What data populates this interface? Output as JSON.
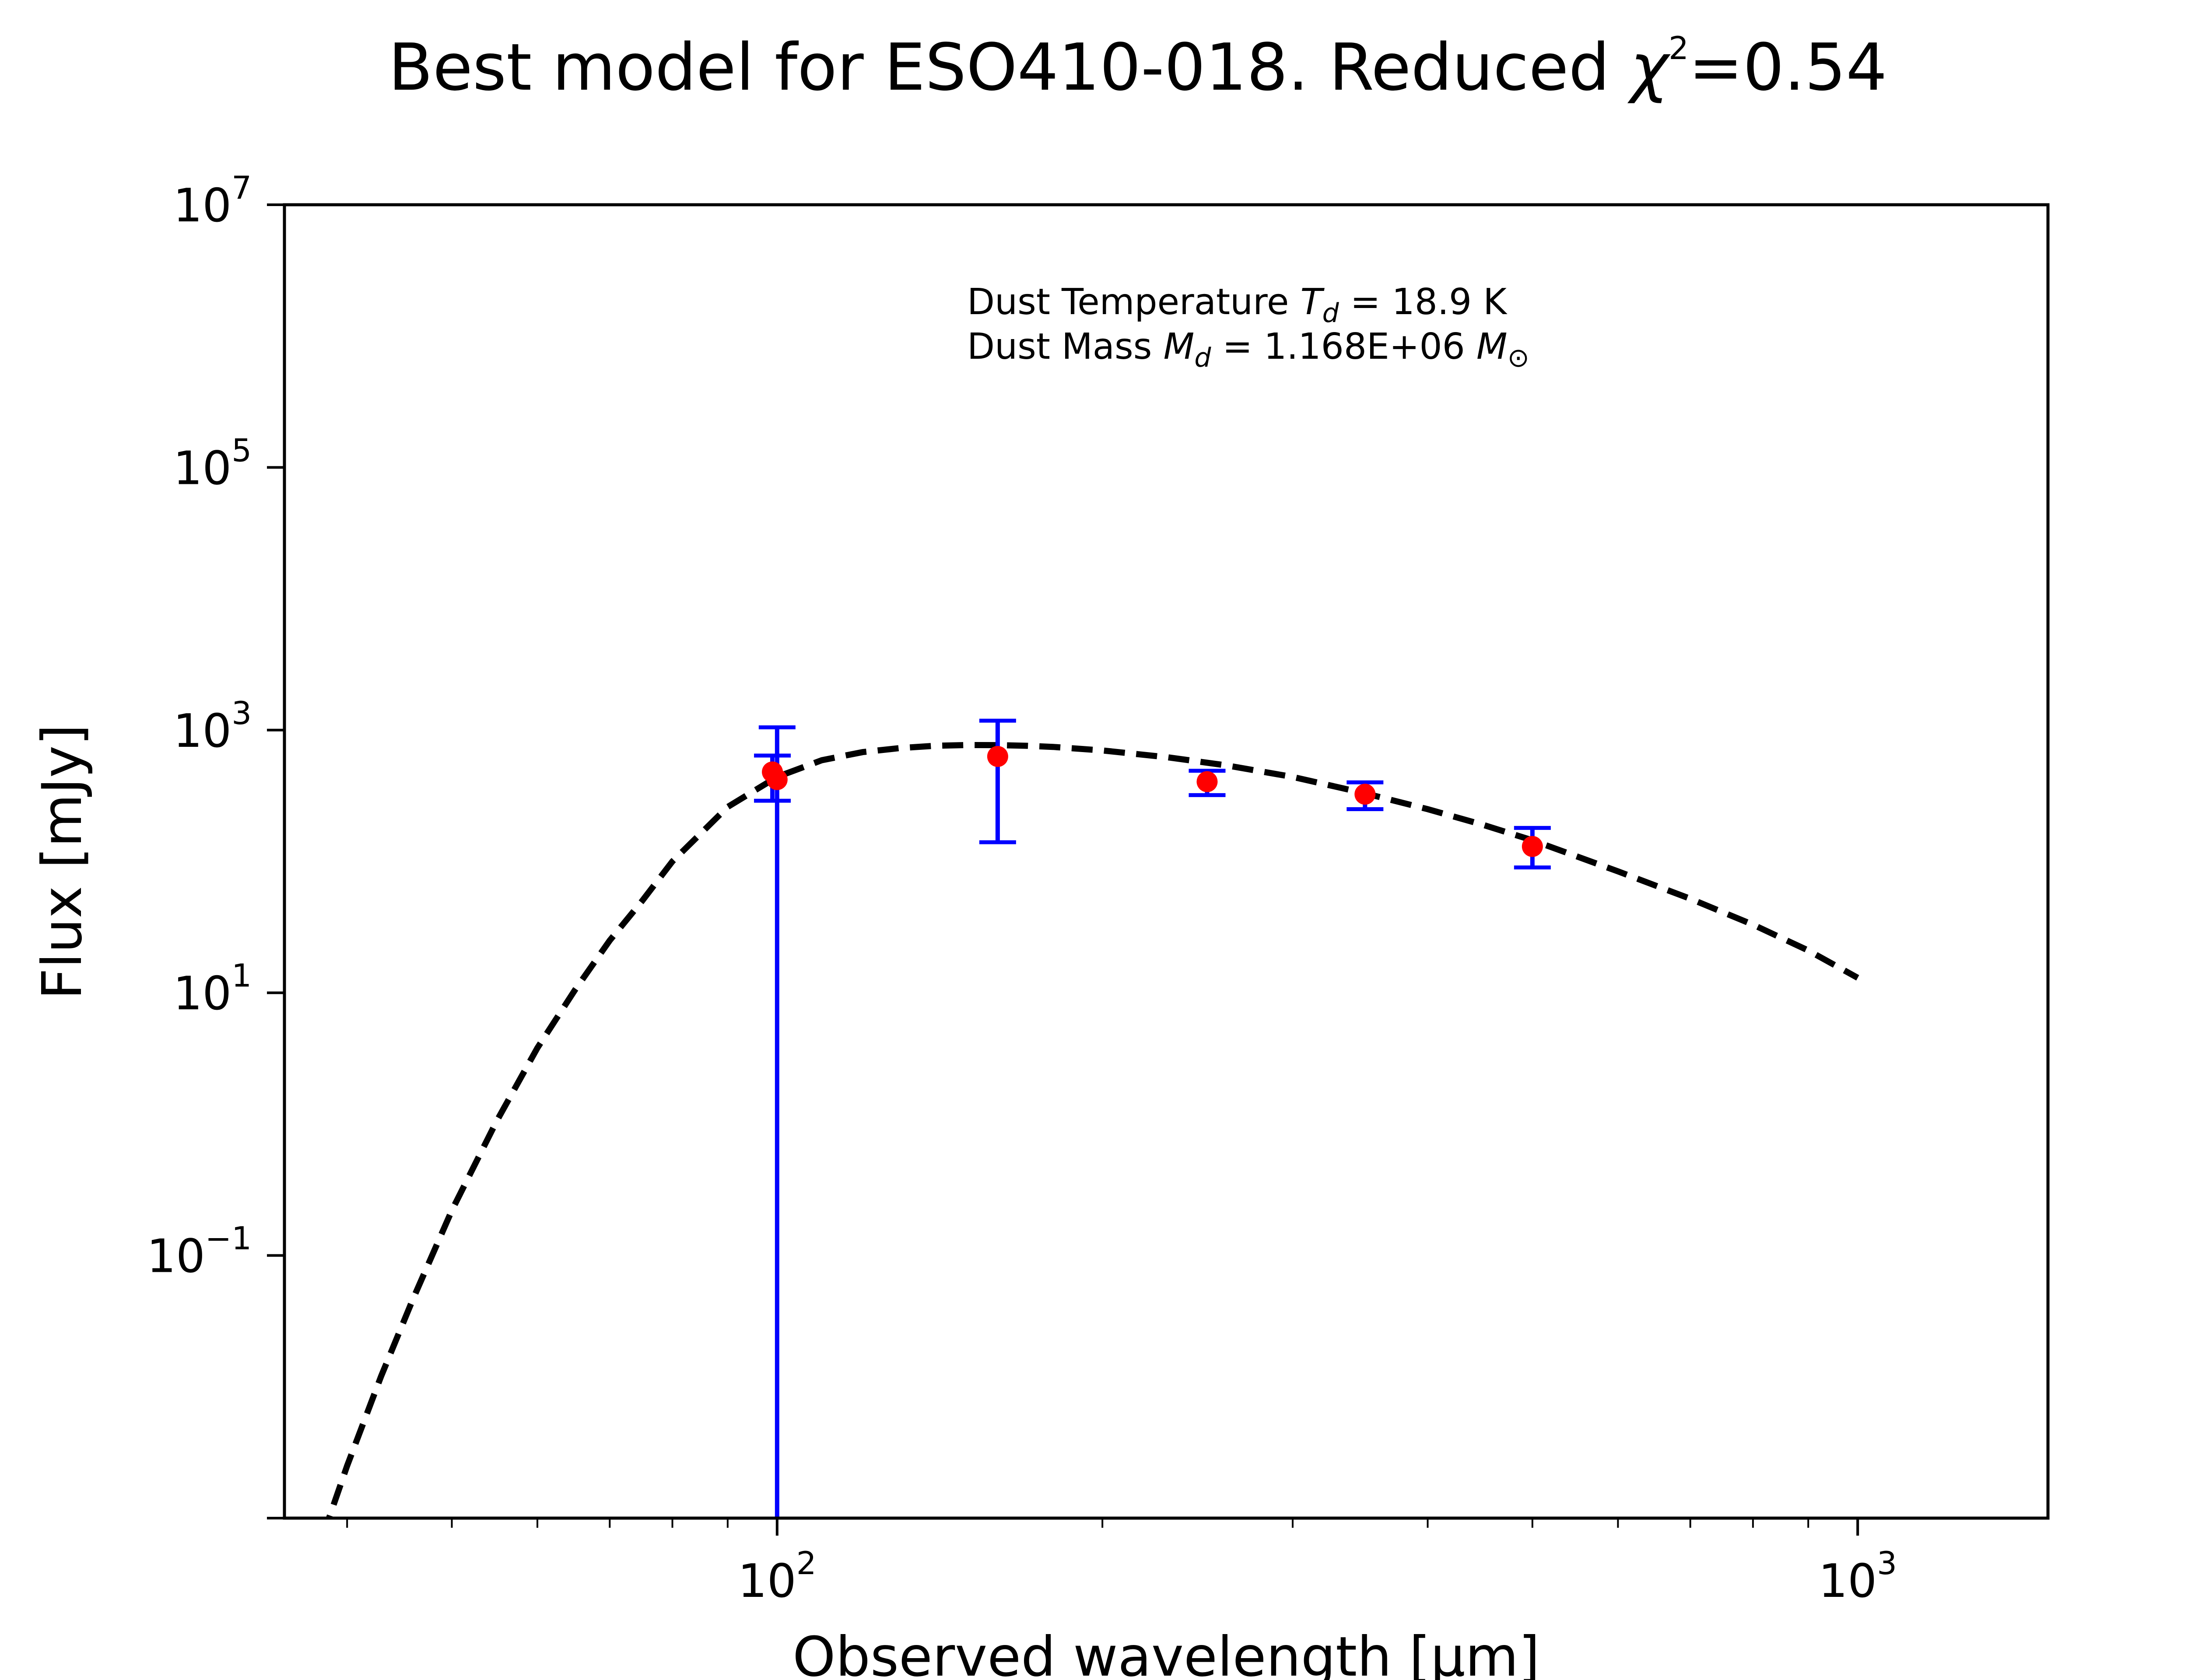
{
  "chart_data": {
    "type": "scatter",
    "title": "Best model for ESO410-018. Reduced χ²=0.54",
    "title_parts": {
      "main": "Best model for ESO410-018. Reduced ",
      "chi": "χ",
      "exp": "2",
      "value": "=0.54"
    },
    "xlabel": "Observed wavelength [μm]",
    "ylabel": "Flux [mJy]",
    "xscale": "log",
    "yscale": "log",
    "xlim": [
      35,
      1500
    ],
    "ylim": [
      0.001,
      10000000
    ],
    "x_ticks": [
      {
        "value": 100,
        "base": "10",
        "exp": "2"
      },
      {
        "value": 1000,
        "base": "10",
        "exp": "3"
      }
    ],
    "y_ticks": [
      {
        "value": 0.1,
        "base": "10",
        "exp": "−1"
      },
      {
        "value": 10,
        "base": "10",
        "exp": "1"
      },
      {
        "value": 1000,
        "base": "10",
        "exp": "3"
      },
      {
        "value": 100000,
        "base": "10",
        "exp": "5"
      },
      {
        "value": 10000000,
        "base": "10",
        "exp": "7"
      }
    ],
    "grid": false,
    "annotations": {
      "line1": {
        "pre": "Dust Temperature ",
        "sym": "T",
        "sub": "d",
        "post": " = 18.9 K"
      },
      "line2": {
        "pre": "Dust Mass ",
        "sym": "M",
        "sub": "d",
        "post": " = 1.168E+06 ",
        "unit_sym": "M",
        "unit_sub": "⊙"
      }
    },
    "model": {
      "style": "dashed",
      "color": "#000000",
      "points": [
        [
          38,
          0.00074
        ],
        [
          40,
          0.0025
        ],
        [
          43,
          0.012
        ],
        [
          46,
          0.046
        ],
        [
          50,
          0.22
        ],
        [
          55,
          1.05
        ],
        [
          60,
          3.8
        ],
        [
          65,
          10.5
        ],
        [
          70,
          25
        ],
        [
          75,
          50
        ],
        [
          80,
          100
        ],
        [
          90,
          260
        ],
        [
          100,
          440
        ],
        [
          110,
          590
        ],
        [
          120,
          680
        ],
        [
          130,
          730
        ],
        [
          140,
          760
        ],
        [
          150,
          770
        ],
        [
          160,
          768
        ],
        [
          170,
          760
        ],
        [
          180,
          745
        ],
        [
          200,
          700
        ],
        [
          230,
          620
        ],
        [
          260,
          540
        ],
        [
          300,
          440
        ],
        [
          350,
          330
        ],
        [
          400,
          250
        ],
        [
          450,
          190
        ],
        [
          500,
          145
        ],
        [
          600,
          84
        ],
        [
          700,
          52
        ],
        [
          800,
          33
        ],
        [
          900,
          21
        ],
        [
          1000,
          13
        ]
      ]
    },
    "observations": {
      "marker_color": "#ff0000",
      "errorbar_color": "#0000ff",
      "points": [
        {
          "x": 100,
          "y": 420,
          "yerr_low": 0.001,
          "yerr_high": 1050
        },
        {
          "x": 99,
          "y": 480,
          "yerr_low": 290,
          "yerr_high": 640
        },
        {
          "x": 160,
          "y": 630,
          "yerr_low": 140,
          "yerr_high": 1180
        },
        {
          "x": 250,
          "y": 405,
          "yerr_low": 320,
          "yerr_high": 490
        },
        {
          "x": 350,
          "y": 325,
          "yerr_low": 250,
          "yerr_high": 400
        },
        {
          "x": 500,
          "y": 130,
          "yerr_low": 90,
          "yerr_high": 180
        }
      ]
    }
  }
}
